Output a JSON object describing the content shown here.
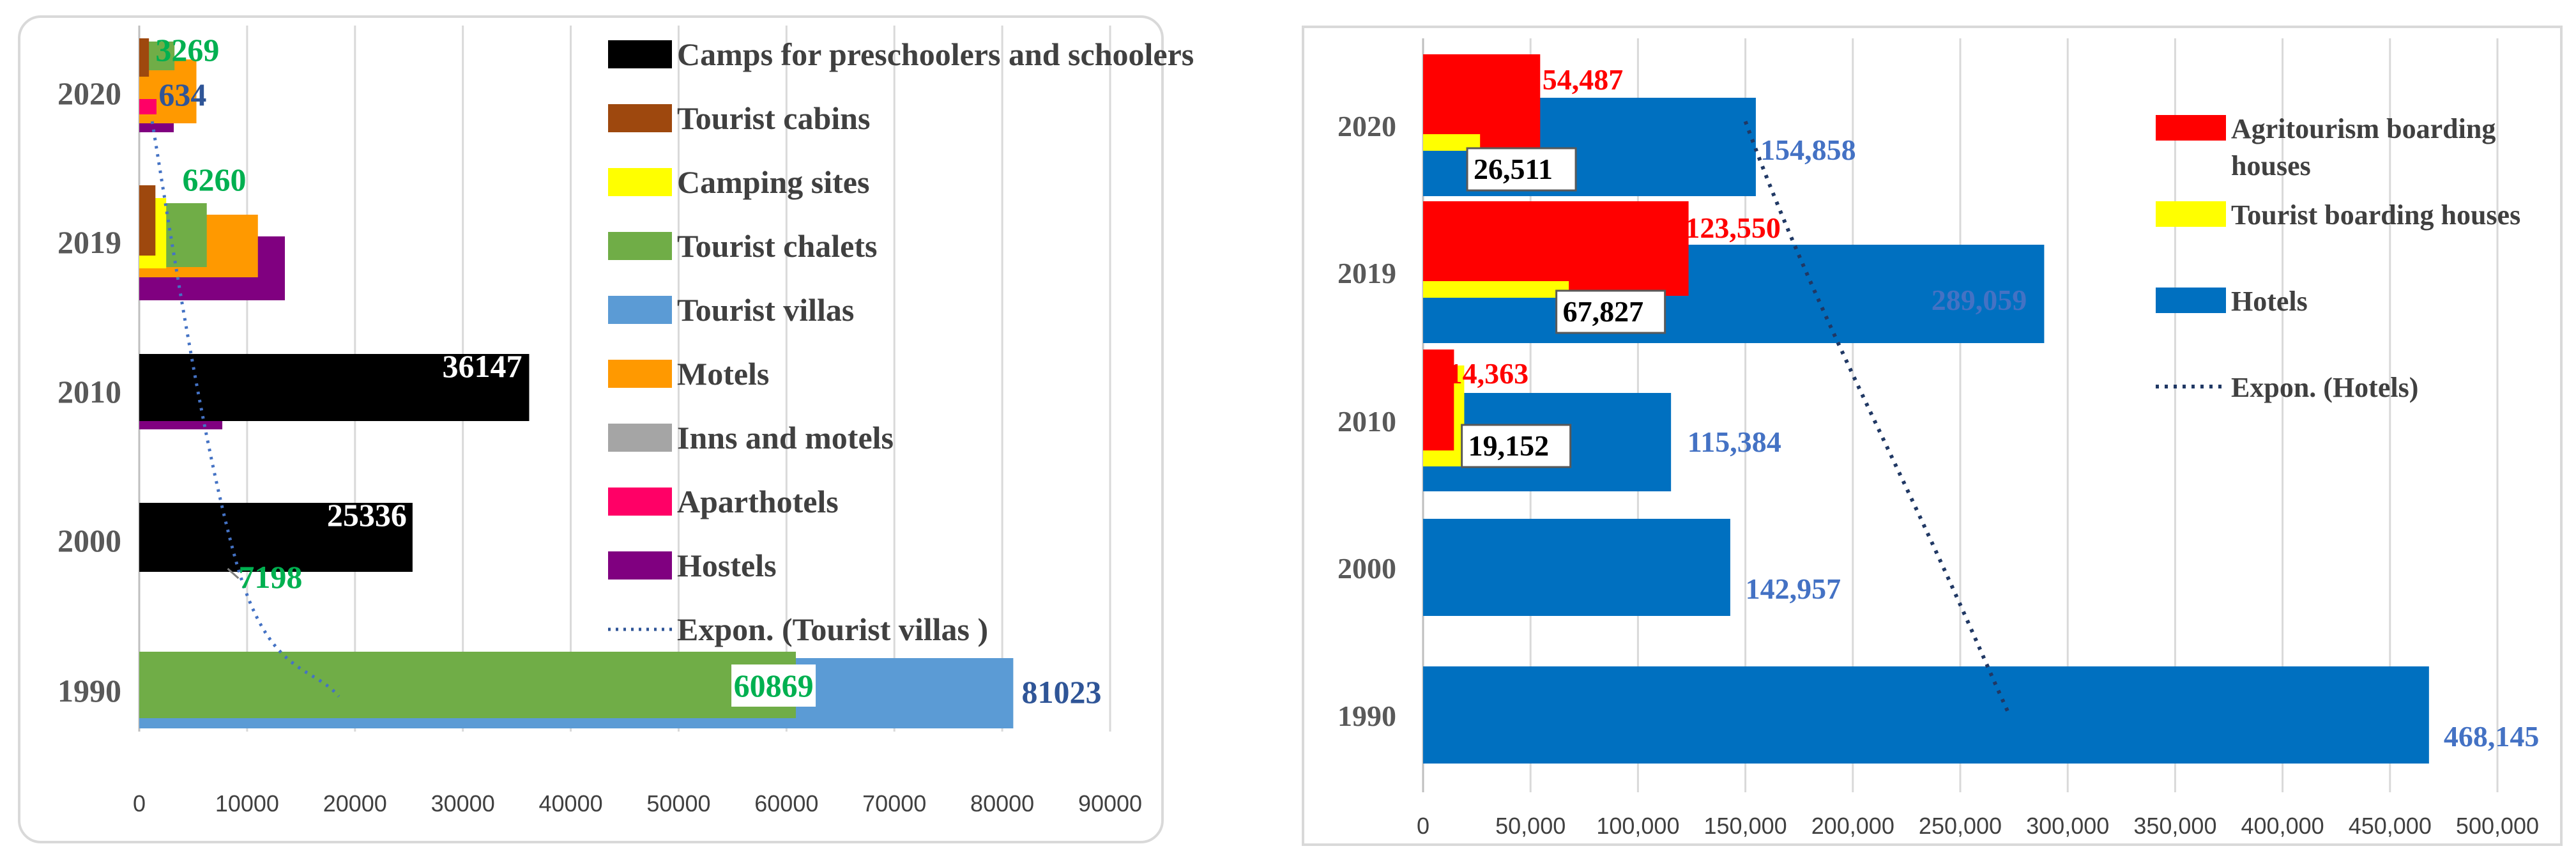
{
  "colors": {
    "camps": "#000000",
    "cabins": "#9e480e",
    "camping": "#ffff00",
    "chalets": "#70ad47",
    "villas": "#5b9bd5",
    "motels": "#ff9900",
    "inns": "#a5a5a5",
    "aparthotels": "#ff0066",
    "hostels": "#800080",
    "agri": "#ff0000",
    "boarding": "#ffff00",
    "hotels": "#0070c0",
    "label_green": "#00b050",
    "label_blue": "#2f5597",
    "label_red": "#ff0000",
    "label_hotels": "#4472c4"
  },
  "chart_data": [
    {
      "type": "bar",
      "orientation": "horizontal",
      "categories": [
        "2020",
        "2019",
        "2010",
        "2000",
        "1990"
      ],
      "xlim": [
        0,
        90000
      ],
      "xticks": [
        "0",
        "10000",
        "20000",
        "30000",
        "40000",
        "50000",
        "60000",
        "70000",
        "80000",
        "90000"
      ],
      "series": [
        {
          "name": "Camps for preschoolers and schoolers",
          "color_key": "camps",
          "values": [
            null,
            null,
            36147,
            25336,
            null
          ]
        },
        {
          "name": "Tourist cabins",
          "color_key": "cabins",
          "values": [
            900,
            1500,
            null,
            null,
            null
          ]
        },
        {
          "name": "Camping sites",
          "color_key": "camping",
          "values": [
            null,
            2500,
            null,
            null,
            null
          ]
        },
        {
          "name": "Tourist chalets",
          "color_key": "chalets",
          "values": [
            3269,
            6260,
            1500,
            7198,
            60869
          ]
        },
        {
          "name": "Tourist villas",
          "color_key": "villas",
          "values": [
            634,
            3200,
            2500,
            1000,
            81023
          ]
        },
        {
          "name": "Motels",
          "color_key": "motels",
          "values": [
            5300,
            11000,
            4000,
            7500,
            null
          ]
        },
        {
          "name": "Inns and motels",
          "color_key": "inns",
          "values": [
            null,
            null,
            null,
            7800,
            null
          ]
        },
        {
          "name": "Aparthotels",
          "color_key": "aparthotels",
          "values": [
            1600,
            null,
            null,
            null,
            null
          ]
        },
        {
          "name": "Hostels",
          "color_key": "hostels",
          "values": [
            3200,
            13500,
            7700,
            null,
            null
          ]
        }
      ],
      "trendline": {
        "name": "Expon. (Tourist villas )",
        "series": "Tourist villas"
      },
      "data_labels": [
        {
          "series": "Tourist chalets",
          "category": "2020",
          "text": "3269",
          "color_key": "label_green"
        },
        {
          "series": "Tourist villas",
          "category": "2020",
          "text": "634",
          "color_key": "label_blue"
        },
        {
          "series": "Tourist chalets",
          "category": "2019",
          "text": "6260",
          "color_key": "label_green"
        },
        {
          "series": "Camps for preschoolers and schoolers",
          "category": "2010",
          "text": "36147",
          "color_key": "white"
        },
        {
          "series": "Camps for preschoolers and schoolers",
          "category": "2000",
          "text": "25336",
          "color_key": "white"
        },
        {
          "series": "Tourist chalets",
          "category": "2000",
          "text": "7198",
          "color_key": "label_green"
        },
        {
          "series": "Tourist chalets",
          "category": "1990",
          "text": "60869",
          "color_key": "label_green"
        },
        {
          "series": "Tourist villas",
          "category": "1990",
          "text": "81023",
          "color_key": "label_blue"
        }
      ],
      "legend": [
        {
          "label": "Camps for preschoolers and schoolers",
          "color_key": "camps"
        },
        {
          "label": "Tourist cabins",
          "color_key": "cabins"
        },
        {
          "label": "Camping sites",
          "color_key": "camping"
        },
        {
          "label": "Tourist chalets",
          "color_key": "chalets"
        },
        {
          "label": "Tourist villas",
          "color_key": "villas"
        },
        {
          "label": "Motels",
          "color_key": "motels"
        },
        {
          "label": "Inns and motels",
          "color_key": "inns"
        },
        {
          "label": "Aparthotels",
          "color_key": "aparthotels"
        },
        {
          "label": "Hostels",
          "color_key": "hostels"
        },
        {
          "label": "Expon. (Tourist villas )",
          "line": true,
          "color_key": "label_blue"
        }
      ]
    },
    {
      "type": "bar",
      "orientation": "horizontal",
      "categories": [
        "2020",
        "2019",
        "2010",
        "2000",
        "1990"
      ],
      "xlim": [
        0,
        500000
      ],
      "xticks": [
        "0",
        "50,000",
        "100,000",
        "150,000",
        "200,000",
        "250,000",
        "300,000",
        "350,000",
        "400,000",
        "450,000",
        "500,000"
      ],
      "series": [
        {
          "name": "Agritourism boarding houses",
          "color_key": "agri",
          "values": [
            54487,
            123550,
            14363,
            null,
            null
          ]
        },
        {
          "name": "Tourist boarding houses",
          "color_key": "boarding",
          "values": [
            26511,
            67827,
            19152,
            null,
            null
          ]
        },
        {
          "name": "Hotels",
          "color_key": "hotels",
          "values": [
            154858,
            289059,
            115384,
            142957,
            468145
          ]
        }
      ],
      "trendline": {
        "name": "Expon. (Hotels)",
        "series": "Hotels"
      },
      "data_labels": [
        {
          "series": "Agritourism boarding houses",
          "category": "2020",
          "text": "54,487",
          "color_key": "label_red"
        },
        {
          "series": "Tourist boarding houses",
          "category": "2020",
          "text": "26,511",
          "color_key": "black"
        },
        {
          "series": "Hotels",
          "category": "2020",
          "text": "154,858",
          "color_key": "label_hotels"
        },
        {
          "series": "Agritourism boarding houses",
          "category": "2019",
          "text": "123,550",
          "color_key": "label_red"
        },
        {
          "series": "Tourist boarding houses",
          "category": "2019",
          "text": "67,827",
          "color_key": "black"
        },
        {
          "series": "Hotels",
          "category": "2019",
          "text": "289,059",
          "color_key": "label_hotels"
        },
        {
          "series": "Agritourism boarding houses",
          "category": "2010",
          "text": "14,363",
          "color_key": "label_red"
        },
        {
          "series": "Tourist boarding houses",
          "category": "2010",
          "text": "19,152",
          "color_key": "black"
        },
        {
          "series": "Hotels",
          "category": "2010",
          "text": "115,384",
          "color_key": "label_hotels"
        },
        {
          "series": "Hotels",
          "category": "2000",
          "text": "142,957",
          "color_key": "label_hotels"
        },
        {
          "series": "Hotels",
          "category": "1990",
          "text": "468,145",
          "color_key": "label_hotels"
        }
      ],
      "legend": [
        {
          "label": "Agritourism boarding houses",
          "color_key": "agri"
        },
        {
          "label": "Tourist boarding houses",
          "color_key": "boarding"
        },
        {
          "label": "Hotels",
          "color_key": "hotels"
        },
        {
          "label": "Expon. (Hotels)",
          "line": true,
          "color_key": "label_blue"
        }
      ]
    }
  ]
}
